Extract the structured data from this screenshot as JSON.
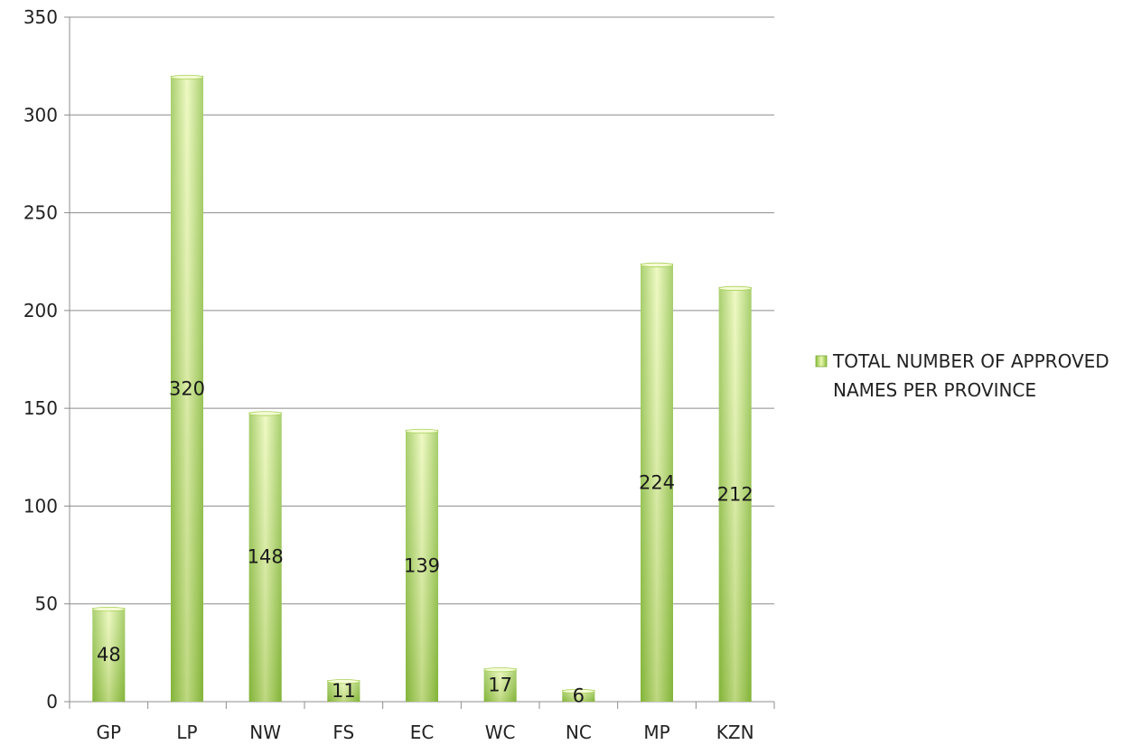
{
  "chart_data": {
    "type": "bar",
    "categories": [
      "GP",
      "LP",
      "NW",
      "FS",
      "EC",
      "WC",
      "NC",
      "MP",
      "KZN"
    ],
    "series": [
      {
        "name": "TOTAL NUMBER OF APPROVED NAMES PER PROVINCE",
        "values": [
          48,
          320,
          148,
          11,
          139,
          17,
          6,
          224,
          212
        ]
      }
    ],
    "data_labels": [
      "48",
      "320",
      "148",
      "11",
      "139",
      "17",
      "6",
      "224",
      "212"
    ],
    "y_ticks": [
      "0",
      "50",
      "100",
      "150",
      "200",
      "250",
      "300",
      "350"
    ],
    "ylim": [
      0,
      350
    ],
    "grid": true,
    "legend_position": "right",
    "legend_lines": [
      "TOTAL NUMBER OF APPROVED",
      "NAMES PER PROVINCE"
    ],
    "colors": {
      "bar_light": "#eaf8b5",
      "bar_mid": "#c6e57c",
      "bar_dark": "#8cbf3f",
      "grid": "#8c8c8c"
    }
  }
}
